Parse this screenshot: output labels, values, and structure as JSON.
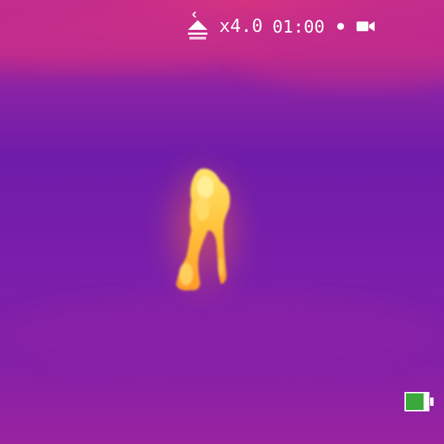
{
  "hud": {
    "zoom_label": "x4.0",
    "timer": "01:00",
    "mode_icon": "thermal-mode-icon",
    "record_indicator_icon": "record-dot-icon",
    "camera_icon": "video-camera-icon"
  },
  "battery": {
    "icon": "battery-icon",
    "level": 0.8,
    "color": "#3aa83a"
  },
  "palette": {
    "background_cold": "#6d1aa8",
    "background_warm": "#b8288f",
    "hotspot": "#ffd23c"
  }
}
